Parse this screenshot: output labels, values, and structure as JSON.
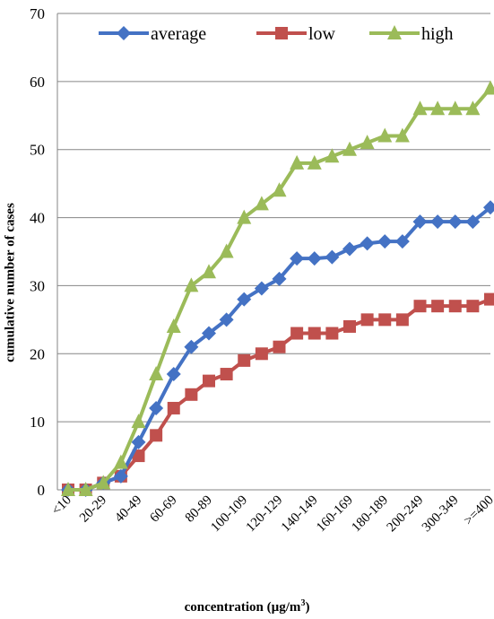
{
  "chart_data": {
    "type": "line",
    "categories": [
      "<10",
      "",
      "20-29",
      "",
      "40-49",
      "",
      "60-69",
      "",
      "80-89",
      "",
      "100-109",
      "",
      "120-129",
      "",
      "140-149",
      "",
      "160-169",
      "",
      "180-189",
      "",
      "200-249",
      "",
      "300-349",
      "",
      ">=400"
    ],
    "series": [
      {
        "name": "average",
        "color": "#4472C4",
        "marker": "diamond",
        "values": [
          0,
          0,
          1,
          2,
          7,
          12,
          17,
          21,
          23,
          25,
          28,
          29.6,
          31,
          34,
          34,
          34.2,
          35.4,
          36.2,
          36.5,
          36.5,
          39.4,
          39.4,
          39.4,
          39.4,
          41.5
        ]
      },
      {
        "name": "low",
        "color": "#C0504D",
        "marker": "square",
        "values": [
          0,
          0,
          1,
          2,
          5,
          8,
          12,
          14,
          16,
          17,
          19,
          20,
          21,
          23,
          23,
          23,
          24,
          25,
          25,
          25,
          27,
          27,
          27,
          27,
          28
        ]
      },
      {
        "name": "high",
        "color": "#9BBB59",
        "marker": "triangle",
        "values": [
          0,
          0,
          1,
          4,
          10,
          17,
          24,
          30,
          32,
          35,
          40,
          42,
          44,
          48,
          48,
          49,
          50,
          51,
          52,
          52,
          56,
          56,
          56,
          56,
          59
        ]
      }
    ],
    "ylim": [
      0,
      70
    ],
    "yticks": [
      0,
      10,
      20,
      30,
      40,
      50,
      60,
      70
    ],
    "xlabel_text": "concentration (µg/m",
    "xlabel_sup": "3",
    "xlabel_close": ")",
    "ylabel": "cumulative number of cases",
    "grid": true,
    "legend": "top"
  }
}
